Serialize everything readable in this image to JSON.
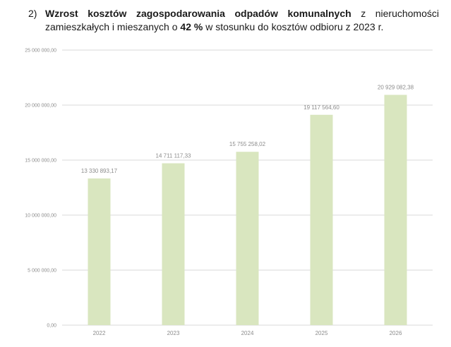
{
  "heading": {
    "marker": "2)",
    "w1": "Wzrost",
    "w2": "kosztów",
    "w3": "zagospodarowania",
    "w4": "odpadów",
    "w5": "komunalnych",
    "w6": "z",
    "w7": "nieruchomości",
    "line2_a": "zamieszkałych i mieszanych o ",
    "line2_b": "42 %",
    "line2_c": " w stosunku do kosztów odbioru z 2023 r."
  },
  "colors": {
    "bar": "#d9e6bf",
    "grid": "#d9d9d9",
    "label": "#8c8c8c"
  },
  "chart_data": {
    "type": "bar",
    "categories": [
      "2022",
      "2023",
      "2024",
      "2025",
      "2026"
    ],
    "values": [
      13330893.17,
      14711117.33,
      15755258.02,
      19117564.6,
      20929082.38
    ],
    "value_labels": [
      "13 330 893,17",
      "14 711 117,33",
      "15 755 258,02",
      "19 117 564,60",
      "20 929 082,38"
    ],
    "y_ticks": [
      0,
      5000000,
      10000000,
      15000000,
      20000000,
      25000000
    ],
    "y_tick_labels": [
      "0,00",
      "5 000 000,00",
      "10 000 000,00",
      "15 000 000,00",
      "20 000 000,00",
      "25 000 000,00"
    ],
    "ylim": [
      0,
      25000000
    ],
    "title": "",
    "xlabel": "",
    "ylabel": "",
    "grid": true,
    "legend": "none"
  }
}
